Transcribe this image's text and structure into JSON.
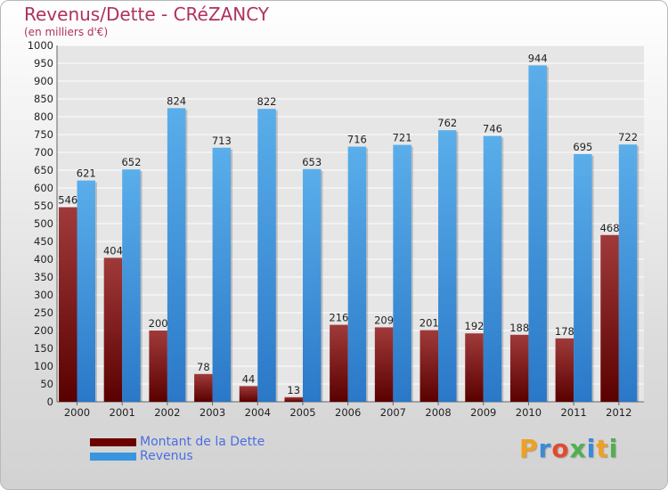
{
  "header": {
    "title": "Revenus/Dette - CRéZANCY",
    "subtitle": "(en milliers d'€)"
  },
  "legend": {
    "items": [
      {
        "label": "Montant de la Dette",
        "color": "#6b0000"
      },
      {
        "label": "Revenus",
        "color": "#3a95e0"
      }
    ]
  },
  "logo": {
    "letters": [
      "P",
      "r",
      "o",
      "x",
      "i",
      "t",
      "i"
    ],
    "colors": [
      "#f0a020",
      "#3a8ad8",
      "#e24a30",
      "#50b050",
      "#3a8ad8",
      "#f0a020",
      "#50b050"
    ]
  },
  "chart_data": {
    "type": "bar",
    "categories": [
      "2000",
      "2001",
      "2002",
      "2003",
      "2004",
      "2005",
      "2006",
      "2007",
      "2008",
      "2009",
      "2010",
      "2011",
      "2012"
    ],
    "series": [
      {
        "name": "Montant de la Dette",
        "color": "#6b0000",
        "values": [
          546,
          404,
          200,
          78,
          44,
          13,
          216,
          209,
          201,
          192,
          188,
          178,
          468
        ]
      },
      {
        "name": "Revenus",
        "color": "#3a95e0",
        "values": [
          621,
          652,
          824,
          713,
          822,
          653,
          716,
          721,
          762,
          746,
          944,
          695,
          722
        ]
      }
    ],
    "ylim": [
      0,
      1000
    ],
    "ytick_step": 50,
    "grid": true,
    "legend_position": "bottom-left"
  }
}
